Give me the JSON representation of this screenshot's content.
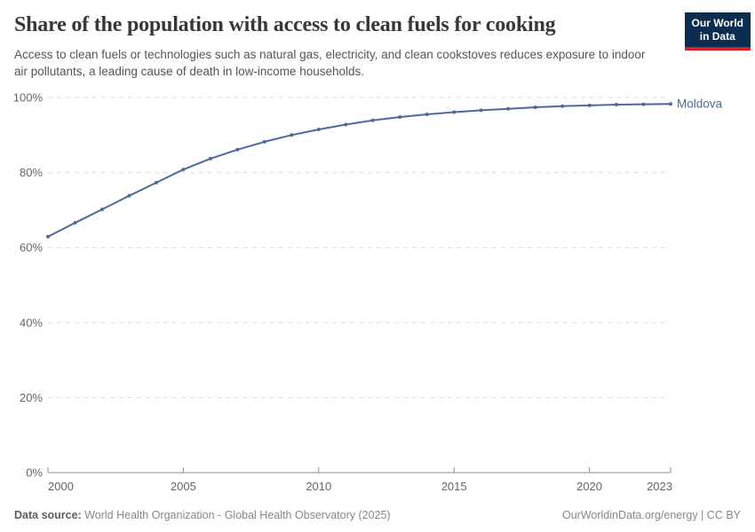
{
  "header": {
    "title": "Share of the population with access to clean fuels for cooking",
    "subtitle": "Access to clean fuels or technologies such as natural gas, electricity, and clean cookstoves reduces exposure to indoor air pollutants, a leading cause of death in low-income households.",
    "logo": {
      "line1": "Our World",
      "line2": "in Data"
    }
  },
  "chart_data": {
    "type": "line",
    "title": "Share of the population with access to clean fuels for cooking",
    "series": [
      {
        "name": "Moldova",
        "color": "#4c6a9c",
        "x": [
          2000,
          2001,
          2002,
          2003,
          2004,
          2005,
          2006,
          2007,
          2008,
          2009,
          2010,
          2011,
          2012,
          2013,
          2014,
          2015,
          2016,
          2017,
          2018,
          2019,
          2020,
          2021,
          2022,
          2023
        ],
        "values": [
          62.9,
          66.6,
          70.2,
          73.8,
          77.3,
          80.8,
          83.7,
          86.1,
          88.2,
          90.0,
          91.5,
          92.8,
          93.9,
          94.8,
          95.5,
          96.1,
          96.6,
          97.0,
          97.4,
          97.7,
          97.9,
          98.1,
          98.2,
          98.3
        ]
      }
    ],
    "xlabel": "",
    "ylabel": "",
    "xlim": [
      2000,
      2023
    ],
    "ylim": [
      0,
      100
    ],
    "x_ticks": [
      2000,
      2005,
      2010,
      2015,
      2020,
      2023
    ],
    "y_ticks": [
      0,
      20,
      40,
      60,
      80,
      100
    ],
    "y_tick_suffix": "%",
    "grid": "horizontal-dashed",
    "legend_position": "end-of-line-label"
  },
  "colors": {
    "line": "#4c6a9c",
    "grid": "#dcdcdc",
    "axis": "#8f8f8f",
    "tick_label": "#666666",
    "logo_bg": "#0d2d50",
    "logo_accent": "#d4222d"
  },
  "footer": {
    "datasource_label": "Data source:",
    "datasource": "World Health Organization - Global Health Observatory (2025)",
    "link": "OurWorldinData.org/energy | CC BY"
  }
}
